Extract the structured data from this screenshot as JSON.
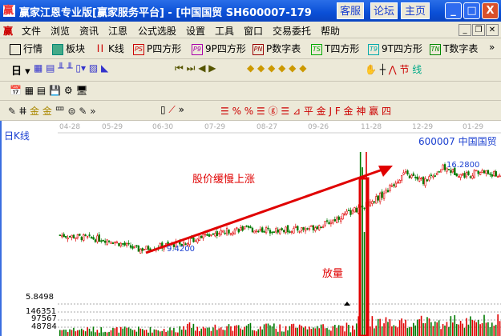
{
  "window": {
    "title": "赢家江恩专业版[赢家服务平台] - [中国国贸   SH600007-179",
    "buttons": [
      "客服",
      "论坛",
      "主页"
    ],
    "controls": [
      "_",
      "□",
      "X"
    ]
  },
  "menu": {
    "logo": "赢",
    "items": [
      "文件",
      "浏览",
      "资讯",
      "江恩",
      "公式选股",
      "设置",
      "工具",
      "窗口",
      "交易委托",
      "帮助"
    ]
  },
  "toolbar1": [
    {
      "icon": "grid-icon",
      "label": "行情"
    },
    {
      "icon": "blocks-icon",
      "label": "板块"
    },
    {
      "icon": "candles-icon",
      "label": "K线"
    },
    {
      "icon": "PS",
      "label": "P四方形"
    },
    {
      "icon": "P9",
      "label": "9P四方形"
    },
    {
      "icon": "PN",
      "label": "P数字表"
    },
    {
      "icon": "TS",
      "label": "T四方形"
    },
    {
      "icon": "T9",
      "label": "9T四方形"
    },
    {
      "icon": "TN",
      "label": "T数字表"
    }
  ],
  "toolbar2": {
    "period": "日",
    "more": "»"
  },
  "chart": {
    "period_label": "日K线",
    "stock": "600007  中国国贸",
    "dates": [
      "04-28",
      "05-29",
      "06-30",
      "07-29",
      "08-27",
      "09-26",
      "11-28",
      "12-29",
      "01-29"
    ],
    "low_label": "9.4200",
    "high_label": "16.2800",
    "annotation_rise": "股价缓慢上涨",
    "annotation_volume": "放量",
    "volume_axis": [
      "5.8498",
      "146351",
      "97567",
      "48784"
    ],
    "price_path": [
      [
        0,
        10.6
      ],
      [
        25,
        10.2
      ],
      [
        40,
        9.42
      ],
      [
        60,
        9.9
      ],
      [
        75,
        10.6
      ],
      [
        90,
        11.1
      ],
      [
        110,
        11.0
      ],
      [
        125,
        11.1
      ],
      [
        135,
        11.5
      ],
      [
        145,
        12.3
      ],
      [
        155,
        13.0
      ],
      [
        165,
        14.0
      ],
      [
        175,
        15.6
      ],
      [
        185,
        15.0
      ],
      [
        195,
        16.1
      ],
      [
        205,
        15.5
      ],
      [
        215,
        15.8
      ],
      [
        225,
        15.4
      ]
    ],
    "colors": {
      "up": "#e00000",
      "down": "#007a00",
      "annotation": "#e00000",
      "label": "#1a3fd0"
    }
  }
}
